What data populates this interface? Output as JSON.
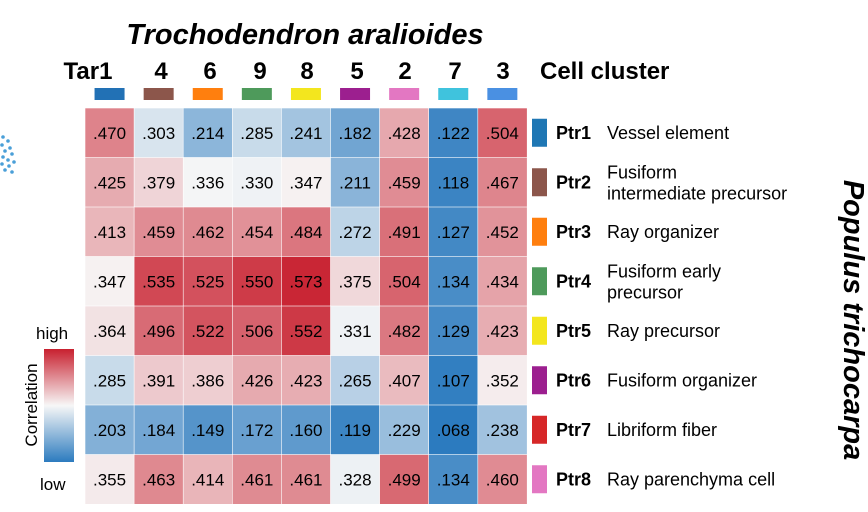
{
  "chart_data": {
    "type": "heatmap",
    "title": "Trochodendron aralioides",
    "side_title": "Populus trichocarpa",
    "column_axis_label": "Cell cluster",
    "columns": [
      {
        "label": "Tar1",
        "color": "#2271b5"
      },
      {
        "label": "4",
        "color": "#8c564b"
      },
      {
        "label": "6",
        "color": "#ff7f0e"
      },
      {
        "label": "9",
        "color": "#4e9a5b"
      },
      {
        "label": "8",
        "color": "#f3e61e"
      },
      {
        "label": "5",
        "color": "#9c1f8f"
      },
      {
        "label": "2",
        "color": "#e377c2"
      },
      {
        "label": "7",
        "color": "#3fc3dd"
      },
      {
        "label": "3",
        "color": "#4a90e2"
      }
    ],
    "rows": [
      {
        "code": "Ptr1",
        "desc": [
          "Vessel element"
        ],
        "color": "#1f77b4"
      },
      {
        "code": "Ptr2",
        "desc": [
          "Fusiform",
          "intermediate precursor"
        ],
        "color": "#8c564b"
      },
      {
        "code": "Ptr3",
        "desc": [
          "Ray organizer"
        ],
        "color": "#ff7f0e"
      },
      {
        "code": "Ptr4",
        "desc": [
          "Fusiform early",
          "precursor"
        ],
        "color": "#4e9a5b"
      },
      {
        "code": "Ptr5",
        "desc": [
          "Ray precursor"
        ],
        "color": "#f3e61e"
      },
      {
        "code": "Ptr6",
        "desc": [
          "Fusiform organizer"
        ],
        "color": "#9c1f8f"
      },
      {
        "code": "Ptr7",
        "desc": [
          "Libriform fiber"
        ],
        "color": "#d62728"
      },
      {
        "code": "Ptr8",
        "desc": [
          "Ray parenchyma cell"
        ],
        "color": "#e377c2"
      }
    ],
    "values": [
      [
        0.47,
        0.303,
        0.214,
        0.285,
        0.241,
        0.182,
        0.428,
        0.122,
        0.504
      ],
      [
        0.425,
        0.379,
        0.336,
        0.33,
        0.347,
        0.211,
        0.459,
        0.118,
        0.467
      ],
      [
        0.413,
        0.459,
        0.462,
        0.454,
        0.484,
        0.272,
        0.491,
        0.127,
        0.452
      ],
      [
        0.347,
        0.535,
        0.525,
        0.55,
        0.573,
        0.375,
        0.504,
        0.134,
        0.434
      ],
      [
        0.364,
        0.496,
        0.522,
        0.506,
        0.552,
        0.331,
        0.482,
        0.129,
        0.423
      ],
      [
        0.285,
        0.391,
        0.386,
        0.426,
        0.423,
        0.265,
        0.407,
        0.107,
        0.352
      ],
      [
        0.203,
        0.184,
        0.149,
        0.172,
        0.16,
        0.119,
        0.229,
        0.068,
        0.238
      ],
      [
        0.355,
        0.463,
        0.414,
        0.461,
        0.461,
        0.328,
        0.499,
        0.134,
        0.46
      ]
    ],
    "value_labels": [
      [
        ".470",
        ".303",
        ".214",
        ".285",
        ".241",
        ".182",
        ".428",
        ".122",
        ".504"
      ],
      [
        ".425",
        ".379",
        ".336",
        ".330",
        ".347",
        ".211",
        ".459",
        ".118",
        ".467"
      ],
      [
        ".413",
        ".459",
        ".462",
        ".454",
        ".484",
        ".272",
        ".491",
        ".127",
        ".452"
      ],
      [
        ".347",
        ".535",
        ".525",
        ".550",
        ".573",
        ".375",
        ".504",
        ".134",
        ".434"
      ],
      [
        ".364",
        ".496",
        ".522",
        ".506",
        ".552",
        ".331",
        ".482",
        ".129",
        ".423"
      ],
      [
        ".285",
        ".391",
        ".386",
        ".426",
        ".423",
        ".265",
        ".407",
        ".107",
        ".352"
      ],
      [
        ".203",
        ".184",
        ".149",
        ".172",
        ".160",
        ".119",
        ".229",
        ".068",
        ".238"
      ],
      [
        ".355",
        ".463",
        ".414",
        ".461",
        ".461",
        ".328",
        ".499",
        ".134",
        ".460"
      ]
    ],
    "color_scale": {
      "label": "Correlation",
      "high_label": "high",
      "low_label": "low",
      "low_color": "#2c7bbf",
      "mid_color": "#f7f7f7",
      "high_color": "#c8202f",
      "domain": [
        0.1,
        0.34,
        0.58
      ]
    }
  }
}
